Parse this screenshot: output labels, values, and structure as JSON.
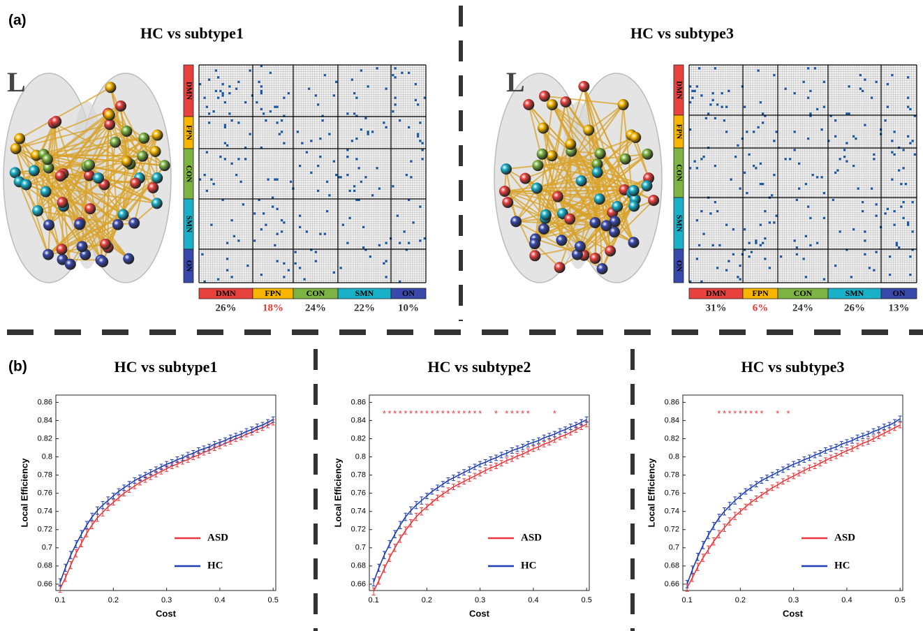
{
  "panel_labels": [
    "(a)",
    "(b)"
  ],
  "panel_a": {
    "networks": [
      "DMN",
      "FPN",
      "CON",
      "SMN",
      "ON"
    ],
    "network_colors": [
      "#e8423f",
      "#f7b500",
      "#7cb342",
      "#1ab0c8",
      "#3949ab"
    ],
    "hemisphere_label": "L",
    "highlight_color": "#e53935",
    "comparisons": [
      {
        "title": "HC vs subtype1",
        "percentages": [
          "26%",
          "18%",
          "24%",
          "22%",
          "10%"
        ],
        "highlight_index": 1
      },
      {
        "title": "HC vs subtype3",
        "percentages": [
          "31%",
          "6%",
          "24%",
          "26%",
          "13%"
        ],
        "highlight_index": 1
      }
    ]
  },
  "chart_data": [
    {
      "type": "line",
      "title": "HC vs subtype1",
      "xlabel": "Cost",
      "ylabel": "Local Efficiency",
      "x": [
        0.1,
        0.11,
        0.12,
        0.13,
        0.14,
        0.15,
        0.16,
        0.17,
        0.18,
        0.19,
        0.2,
        0.21,
        0.22,
        0.23,
        0.24,
        0.25,
        0.26,
        0.27,
        0.28,
        0.29,
        0.3,
        0.31,
        0.32,
        0.33,
        0.34,
        0.35,
        0.36,
        0.37,
        0.38,
        0.39,
        0.4,
        0.41,
        0.42,
        0.43,
        0.44,
        0.45,
        0.46,
        0.47,
        0.48,
        0.49,
        0.5
      ],
      "series": [
        {
          "name": "ASD",
          "color": "#e8383d",
          "values": [
            0.655,
            0.667,
            0.681,
            0.694,
            0.705,
            0.716,
            0.725,
            0.733,
            0.739,
            0.745,
            0.75,
            0.755,
            0.76,
            0.764,
            0.768,
            0.772,
            0.775,
            0.778,
            0.781,
            0.784,
            0.787,
            0.79,
            0.792,
            0.795,
            0.797,
            0.8,
            0.802,
            0.805,
            0.807,
            0.81,
            0.812,
            0.815,
            0.817,
            0.82,
            0.822,
            0.825,
            0.827,
            0.83,
            0.832,
            0.835,
            0.838
          ],
          "errors": [
            0.004,
            0.004,
            0.004,
            0.004,
            0.004,
            0.004,
            0.004,
            0.004,
            0.004,
            0.004,
            0.003,
            0.003,
            0.003,
            0.003,
            0.003,
            0.003,
            0.003,
            0.003,
            0.003,
            0.003,
            0.003,
            0.003,
            0.003,
            0.003,
            0.003,
            0.003,
            0.003,
            0.003,
            0.003,
            0.003,
            0.003,
            0.003,
            0.003,
            0.003,
            0.003,
            0.003,
            0.003,
            0.003,
            0.003,
            0.003,
            0.003
          ]
        },
        {
          "name": "HC",
          "color": "#1f3fb0",
          "values": [
            0.662,
            0.678,
            0.692,
            0.704,
            0.715,
            0.725,
            0.734,
            0.741,
            0.747,
            0.752,
            0.757,
            0.762,
            0.766,
            0.77,
            0.774,
            0.777,
            0.78,
            0.783,
            0.786,
            0.789,
            0.792,
            0.794,
            0.797,
            0.799,
            0.802,
            0.804,
            0.807,
            0.809,
            0.811,
            0.814,
            0.816,
            0.818,
            0.821,
            0.823,
            0.825,
            0.828,
            0.83,
            0.833,
            0.835,
            0.838,
            0.841
          ],
          "errors": [
            0.004,
            0.004,
            0.004,
            0.004,
            0.004,
            0.004,
            0.004,
            0.004,
            0.004,
            0.004,
            0.003,
            0.003,
            0.003,
            0.003,
            0.003,
            0.003,
            0.003,
            0.003,
            0.003,
            0.003,
            0.003,
            0.003,
            0.003,
            0.003,
            0.003,
            0.003,
            0.003,
            0.003,
            0.003,
            0.003,
            0.003,
            0.003,
            0.003,
            0.003,
            0.003,
            0.003,
            0.003,
            0.003,
            0.003,
            0.003,
            0.003
          ]
        }
      ],
      "xlim": [
        0.092,
        0.505
      ],
      "ylim": [
        0.653,
        0.868
      ],
      "xticks": [
        0.1,
        0.2,
        0.3,
        0.4,
        0.5
      ],
      "yticks": [
        0.66,
        0.68,
        0.7,
        0.72,
        0.74,
        0.76,
        0.78,
        0.8,
        0.82,
        0.84,
        0.86
      ],
      "legend": "lower right"
    },
    {
      "type": "line",
      "title": "HC vs subtype2",
      "xlabel": "Cost",
      "ylabel": "Local Efficiency",
      "x": [
        0.1,
        0.11,
        0.12,
        0.13,
        0.14,
        0.15,
        0.16,
        0.17,
        0.18,
        0.19,
        0.2,
        0.21,
        0.22,
        0.23,
        0.24,
        0.25,
        0.26,
        0.27,
        0.28,
        0.29,
        0.3,
        0.31,
        0.32,
        0.33,
        0.34,
        0.35,
        0.36,
        0.37,
        0.38,
        0.39,
        0.4,
        0.41,
        0.42,
        0.43,
        0.44,
        0.45,
        0.46,
        0.47,
        0.48,
        0.49,
        0.5
      ],
      "series": [
        {
          "name": "ASD",
          "color": "#e8383d",
          "values": [
            0.652,
            0.664,
            0.677,
            0.689,
            0.7,
            0.71,
            0.719,
            0.727,
            0.734,
            0.74,
            0.745,
            0.75,
            0.755,
            0.759,
            0.763,
            0.767,
            0.77,
            0.773,
            0.776,
            0.779,
            0.782,
            0.785,
            0.788,
            0.79,
            0.793,
            0.796,
            0.798,
            0.801,
            0.803,
            0.806,
            0.809,
            0.811,
            0.814,
            0.816,
            0.819,
            0.822,
            0.824,
            0.827,
            0.83,
            0.833,
            0.836
          ],
          "errors": [
            0.004,
            0.004,
            0.004,
            0.004,
            0.004,
            0.004,
            0.004,
            0.004,
            0.004,
            0.004,
            0.003,
            0.003,
            0.003,
            0.003,
            0.003,
            0.003,
            0.003,
            0.003,
            0.003,
            0.003,
            0.003,
            0.003,
            0.003,
            0.003,
            0.003,
            0.003,
            0.003,
            0.003,
            0.003,
            0.003,
            0.003,
            0.003,
            0.003,
            0.003,
            0.003,
            0.003,
            0.003,
            0.003,
            0.003,
            0.003,
            0.003
          ]
        },
        {
          "name": "HC",
          "color": "#1f3fb0",
          "values": [
            0.662,
            0.678,
            0.692,
            0.704,
            0.715,
            0.725,
            0.734,
            0.741,
            0.747,
            0.752,
            0.757,
            0.762,
            0.766,
            0.77,
            0.774,
            0.777,
            0.78,
            0.783,
            0.786,
            0.789,
            0.792,
            0.794,
            0.797,
            0.799,
            0.802,
            0.804,
            0.807,
            0.809,
            0.811,
            0.814,
            0.816,
            0.818,
            0.821,
            0.823,
            0.825,
            0.828,
            0.83,
            0.833,
            0.835,
            0.838,
            0.841
          ],
          "errors": [
            0.004,
            0.004,
            0.004,
            0.004,
            0.004,
            0.004,
            0.004,
            0.004,
            0.004,
            0.004,
            0.003,
            0.003,
            0.003,
            0.003,
            0.003,
            0.003,
            0.003,
            0.003,
            0.003,
            0.003,
            0.003,
            0.003,
            0.003,
            0.003,
            0.003,
            0.003,
            0.003,
            0.003,
            0.003,
            0.003,
            0.003,
            0.003,
            0.003,
            0.003,
            0.003,
            0.003,
            0.003,
            0.003,
            0.003,
            0.003,
            0.003
          ]
        }
      ],
      "sig_marks": {
        "text": "*",
        "color": "#e8383d",
        "y": 0.849,
        "x": [
          0.12,
          0.13,
          0.14,
          0.15,
          0.16,
          0.17,
          0.18,
          0.19,
          0.2,
          0.21,
          0.22,
          0.23,
          0.24,
          0.25,
          0.26,
          0.27,
          0.28,
          0.29,
          0.3,
          0.33,
          0.35,
          0.36,
          0.37,
          0.38,
          0.39,
          0.44
        ]
      },
      "xlim": [
        0.092,
        0.505
      ],
      "ylim": [
        0.653,
        0.868
      ],
      "xticks": [
        0.1,
        0.2,
        0.3,
        0.4,
        0.5
      ],
      "yticks": [
        0.66,
        0.68,
        0.7,
        0.72,
        0.74,
        0.76,
        0.78,
        0.8,
        0.82,
        0.84,
        0.86
      ],
      "legend": "lower right"
    },
    {
      "type": "line",
      "title": "HC vs subtype3",
      "xlabel": "Cost",
      "ylabel": "Local Efficiency",
      "x": [
        0.1,
        0.11,
        0.12,
        0.13,
        0.14,
        0.15,
        0.16,
        0.17,
        0.18,
        0.19,
        0.2,
        0.21,
        0.22,
        0.23,
        0.24,
        0.25,
        0.26,
        0.27,
        0.28,
        0.29,
        0.3,
        0.31,
        0.32,
        0.33,
        0.34,
        0.35,
        0.36,
        0.37,
        0.38,
        0.39,
        0.4,
        0.41,
        0.42,
        0.43,
        0.44,
        0.45,
        0.46,
        0.47,
        0.48,
        0.49,
        0.5
      ],
      "series": [
        {
          "name": "ASD",
          "color": "#e8383d",
          "values": [
            0.656,
            0.667,
            0.679,
            0.689,
            0.698,
            0.707,
            0.715,
            0.722,
            0.729,
            0.735,
            0.74,
            0.745,
            0.75,
            0.754,
            0.758,
            0.762,
            0.766,
            0.769,
            0.773,
            0.776,
            0.779,
            0.782,
            0.785,
            0.788,
            0.79,
            0.793,
            0.796,
            0.799,
            0.801,
            0.804,
            0.807,
            0.809,
            0.812,
            0.815,
            0.817,
            0.82,
            0.823,
            0.826,
            0.829,
            0.832,
            0.835
          ],
          "errors": [
            0.004,
            0.004,
            0.004,
            0.004,
            0.004,
            0.004,
            0.004,
            0.004,
            0.004,
            0.004,
            0.003,
            0.003,
            0.003,
            0.003,
            0.003,
            0.003,
            0.003,
            0.003,
            0.003,
            0.003,
            0.003,
            0.003,
            0.003,
            0.003,
            0.003,
            0.003,
            0.003,
            0.003,
            0.003,
            0.003,
            0.003,
            0.003,
            0.003,
            0.003,
            0.003,
            0.003,
            0.003,
            0.003,
            0.003,
            0.003,
            0.003
          ]
        },
        {
          "name": "HC",
          "color": "#1f3fb0",
          "values": [
            0.66,
            0.676,
            0.69,
            0.703,
            0.714,
            0.724,
            0.733,
            0.74,
            0.746,
            0.752,
            0.757,
            0.762,
            0.766,
            0.77,
            0.774,
            0.777,
            0.78,
            0.783,
            0.786,
            0.789,
            0.792,
            0.794,
            0.797,
            0.799,
            0.802,
            0.804,
            0.807,
            0.809,
            0.811,
            0.814,
            0.816,
            0.818,
            0.821,
            0.823,
            0.825,
            0.828,
            0.83,
            0.833,
            0.835,
            0.838,
            0.842
          ],
          "errors": [
            0.004,
            0.004,
            0.004,
            0.004,
            0.004,
            0.004,
            0.004,
            0.004,
            0.004,
            0.004,
            0.003,
            0.003,
            0.003,
            0.003,
            0.003,
            0.003,
            0.003,
            0.003,
            0.003,
            0.003,
            0.003,
            0.003,
            0.003,
            0.003,
            0.003,
            0.003,
            0.003,
            0.003,
            0.003,
            0.003,
            0.003,
            0.003,
            0.003,
            0.003,
            0.003,
            0.003,
            0.003,
            0.003,
            0.003,
            0.003,
            0.003
          ]
        }
      ],
      "sig_marks": {
        "text": "*",
        "color": "#e8383d",
        "y": 0.849,
        "x": [
          0.16,
          0.17,
          0.18,
          0.19,
          0.2,
          0.21,
          0.22,
          0.23,
          0.24,
          0.27,
          0.29
        ]
      },
      "xlim": [
        0.092,
        0.505
      ],
      "ylim": [
        0.653,
        0.868
      ],
      "xticks": [
        0.1,
        0.2,
        0.3,
        0.4,
        0.5
      ],
      "yticks": [
        0.66,
        0.68,
        0.7,
        0.72,
        0.74,
        0.76,
        0.78,
        0.8,
        0.82,
        0.84,
        0.86
      ],
      "legend": "lower right"
    }
  ]
}
